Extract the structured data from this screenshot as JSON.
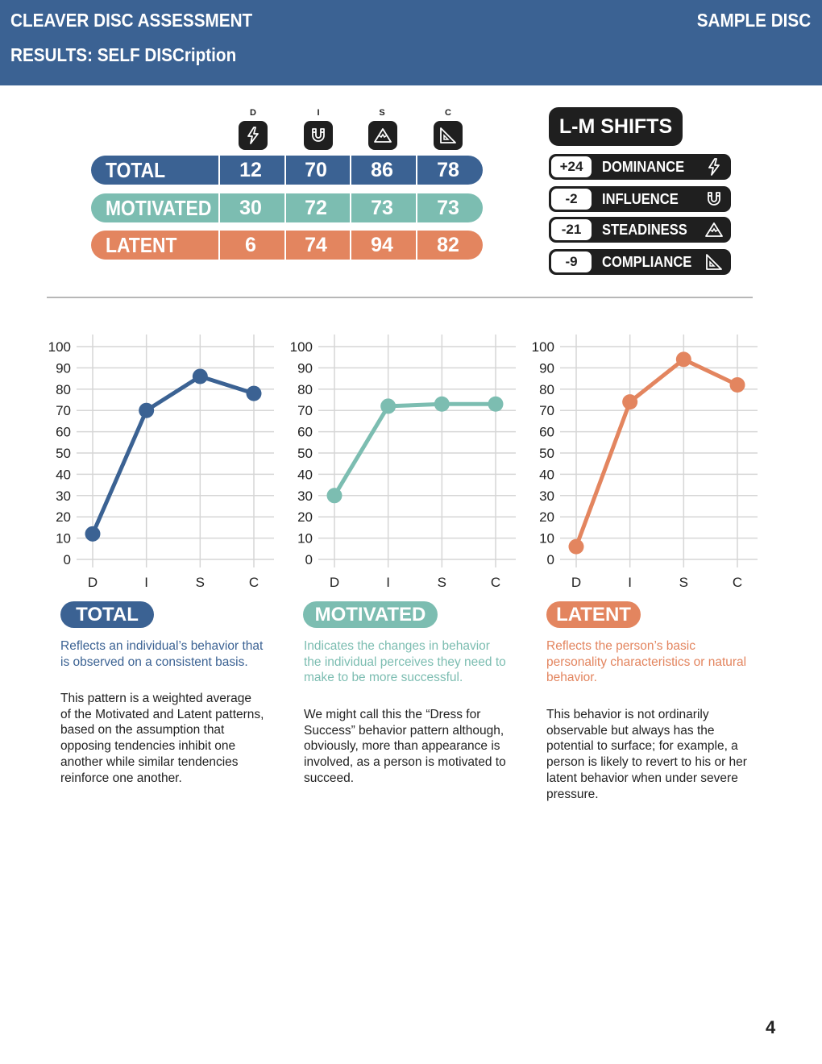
{
  "header": {
    "title": "CLEAVER DISC ASSESSMENT",
    "subtitle": "RESULTS: SELF DISCription",
    "sample": "SAMPLE DISC"
  },
  "columns": [
    {
      "letter": "D",
      "icon": "lightning-icon"
    },
    {
      "letter": "I",
      "icon": "magnet-icon"
    },
    {
      "letter": "S",
      "icon": "mountain-icon"
    },
    {
      "letter": "C",
      "icon": "triangle-ruler-icon"
    }
  ],
  "rows": [
    {
      "name": "TOTAL",
      "values": [
        "12",
        "70",
        "86",
        "78"
      ],
      "color": "#3b6293"
    },
    {
      "name": "MOTIVATED",
      "values": [
        "30",
        "72",
        "73",
        "73"
      ],
      "color": "#7cbdb1"
    },
    {
      "name": "LATENT",
      "values": [
        "6",
        "74",
        "94",
        "82"
      ],
      "color": "#e3855f"
    }
  ],
  "lm_shifts": {
    "title": "L-M SHIFTS",
    "items": [
      {
        "value": "+24",
        "name": "DOMINANCE",
        "icon": "lightning-icon"
      },
      {
        "value": "-2",
        "name": "INFLUENCE",
        "icon": "magnet-icon"
      },
      {
        "value": "-21",
        "name": "STEADINESS",
        "icon": "mountain-icon"
      },
      {
        "value": "-9",
        "name": "COMPLIANCE",
        "icon": "triangle-ruler-icon"
      }
    ]
  },
  "chart_data": [
    {
      "type": "line",
      "title": "TOTAL",
      "categories": [
        "D",
        "I",
        "S",
        "C"
      ],
      "values": [
        12,
        70,
        86,
        78
      ],
      "ylim": [
        0,
        100
      ],
      "yticks": [
        0,
        10,
        20,
        30,
        40,
        50,
        60,
        70,
        80,
        90,
        100
      ],
      "color": "#3b6293",
      "grid": true
    },
    {
      "type": "line",
      "title": "MOTIVATED",
      "categories": [
        "D",
        "I",
        "S",
        "C"
      ],
      "values": [
        30,
        72,
        73,
        73
      ],
      "ylim": [
        0,
        100
      ],
      "yticks": [
        0,
        10,
        20,
        30,
        40,
        50,
        60,
        70,
        80,
        90,
        100
      ],
      "color": "#7cbdb1",
      "grid": true
    },
    {
      "type": "line",
      "title": "LATENT",
      "categories": [
        "D",
        "I",
        "S",
        "C"
      ],
      "values": [
        6,
        74,
        94,
        82
      ],
      "ylim": [
        0,
        100
      ],
      "yticks": [
        0,
        10,
        20,
        30,
        40,
        50,
        60,
        70,
        80,
        90,
        100
      ],
      "color": "#e3855f",
      "grid": true
    }
  ],
  "sections": [
    {
      "label": "TOTAL",
      "desc": [
        "Reflects an individual’s behavior that",
        "is observed on a consistent basis."
      ],
      "body": [
        "This pattern is a weighted average",
        "of the Motivated and Latent patterns,",
        "based on the assumption that",
        "opposing tendencies inhibit one",
        "another while similar tendencies",
        "reinforce one another."
      ]
    },
    {
      "label": "MOTIVATED",
      "desc": [
        "Indicates the changes in behavior",
        "the individual perceives they need to",
        "make to be more successful."
      ],
      "body": [
        "We might call this the “Dress for",
        "Success” behavior pattern although,",
        "obviously, more than appearance is",
        "involved, as a person is motivated to",
        "succeed."
      ]
    },
    {
      "label": "LATENT",
      "desc": [
        "Reflects the person’s basic",
        "personality characteristics or natural",
        "behavior."
      ],
      "body": [
        "This behavior is not ordinarily",
        "observable but always has the",
        "potential to surface; for example, a",
        "person is likely to revert to his or her",
        "latent behavior when under severe",
        "pressure."
      ]
    }
  ],
  "page_number": "4"
}
